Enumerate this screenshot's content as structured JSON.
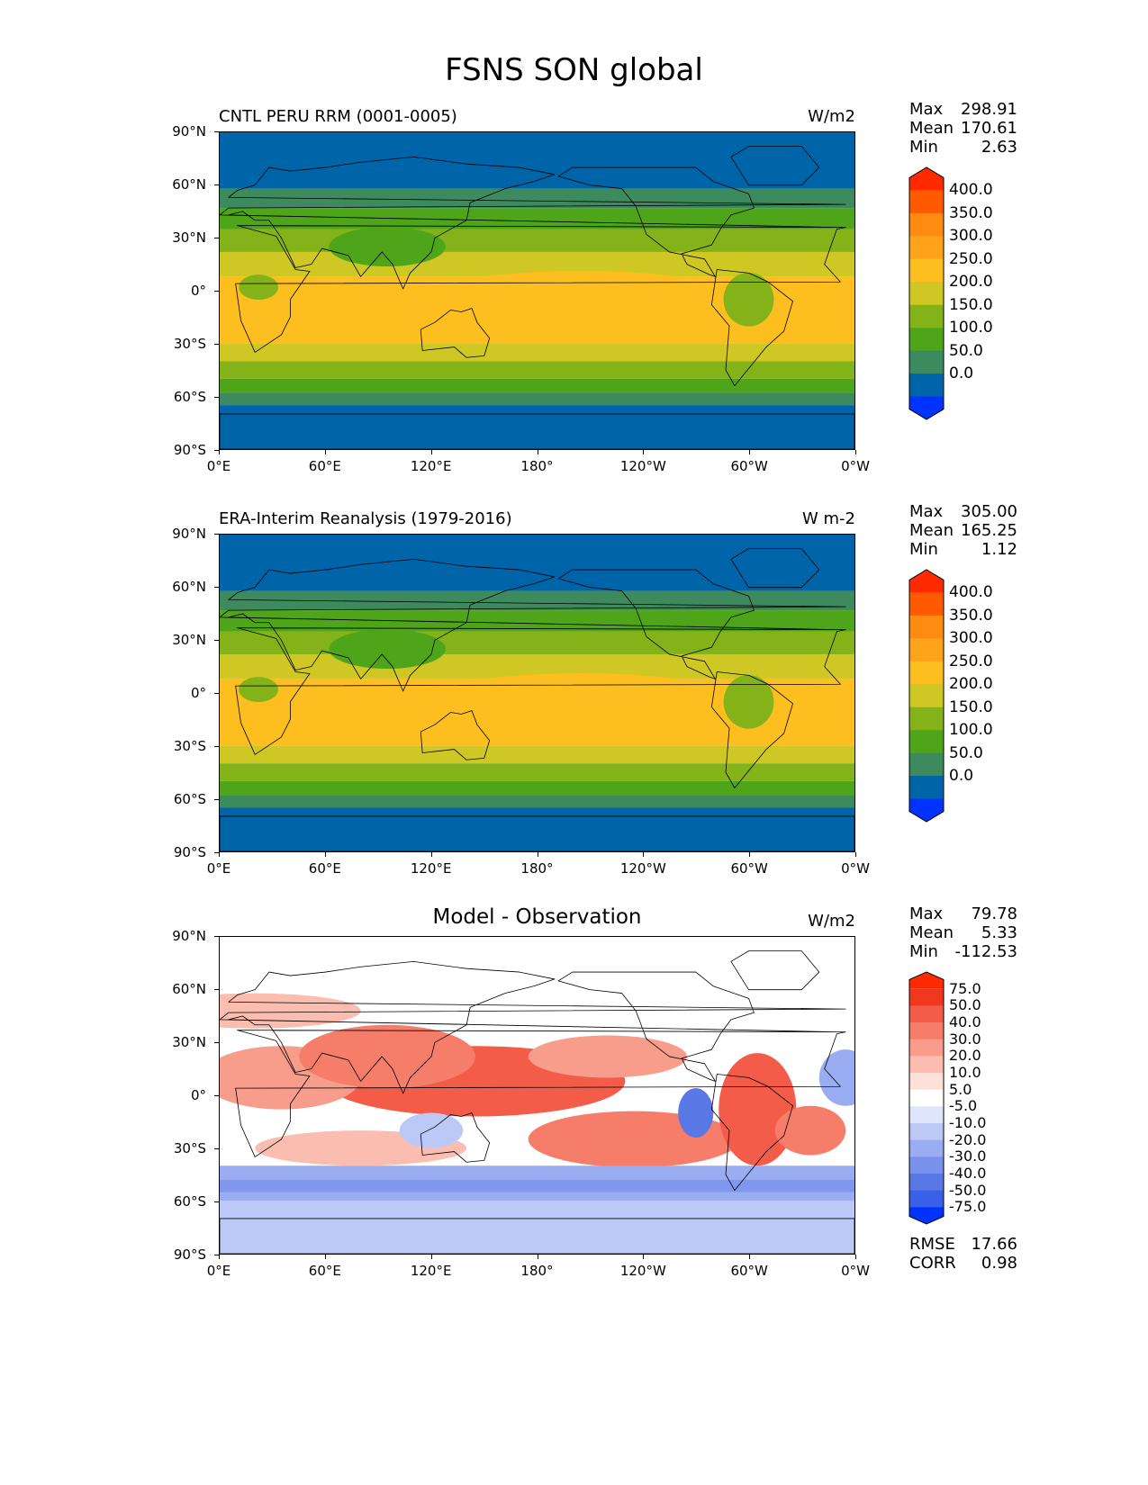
{
  "title": "FSNS SON global",
  "lat_labels": [
    "90°N",
    "60°N",
    "30°N",
    "0°",
    "30°S",
    "60°S",
    "90°S"
  ],
  "lon_labels": [
    "0°E",
    "60°E",
    "120°E",
    "180°",
    "120°W",
    "60°W",
    "0°W"
  ],
  "stat_names": {
    "max": "Max",
    "mean": "Mean",
    "min": "Min",
    "rmse": "RMSE",
    "corr": "CORR"
  },
  "panels": [
    {
      "id": "model",
      "subtitle": "CNTL PERU RRM (0001-0005)",
      "units": "W/m2",
      "stats": {
        "max": "298.91",
        "mean": "170.61",
        "min": "2.63"
      },
      "colorbar": {
        "levels": [
          "400.0",
          "350.0",
          "300.0",
          "250.0",
          "200.0",
          "150.0",
          "100.0",
          "50.0",
          "0.0"
        ],
        "colors": [
          "#ff2a00",
          "#ff5a00",
          "#ff8c10",
          "#ffa41a",
          "#fcbf1f",
          "#cfc723",
          "#83b318",
          "#4fa51a",
          "#3d8a5f",
          "#0065a8",
          "#0033ff"
        ]
      }
    },
    {
      "id": "obs",
      "subtitle": "ERA-Interim Reanalysis (1979-2016)",
      "units": "W m-2",
      "stats": {
        "max": "305.00",
        "mean": "165.25",
        "min": "1.12"
      },
      "colorbar": {
        "levels": [
          "400.0",
          "350.0",
          "300.0",
          "250.0",
          "200.0",
          "150.0",
          "100.0",
          "50.0",
          "0.0"
        ],
        "colors": [
          "#ff2a00",
          "#ff5a00",
          "#ff8c10",
          "#ffa41a",
          "#fcbf1f",
          "#cfc723",
          "#83b318",
          "#4fa51a",
          "#3d8a5f",
          "#0065a8",
          "#0033ff"
        ]
      }
    },
    {
      "id": "diff",
      "title": "Model - Observation",
      "units": "W/m2",
      "stats": {
        "max": "79.78",
        "mean": "5.33",
        "min": "-112.53",
        "rmse": "17.66",
        "corr": "0.98"
      },
      "colorbar": {
        "levels": [
          "75.0",
          "50.0",
          "40.0",
          "30.0",
          "20.0",
          "10.0",
          "5.0",
          "-5.0",
          "-10.0",
          "-20.0",
          "-30.0",
          "-40.0",
          "-50.0",
          "-75.0"
        ],
        "colors": [
          "#ff2a00",
          "#f2371f",
          "#f25c48",
          "#f57d6a",
          "#f89d8c",
          "#fbbdb0",
          "#fde0d8",
          "#ffffff",
          "#dfe6fb",
          "#bcc9f7",
          "#9aadf2",
          "#7a91ec",
          "#5978e6",
          "#3a5fe8",
          "#0033ff"
        ]
      }
    }
  ]
}
